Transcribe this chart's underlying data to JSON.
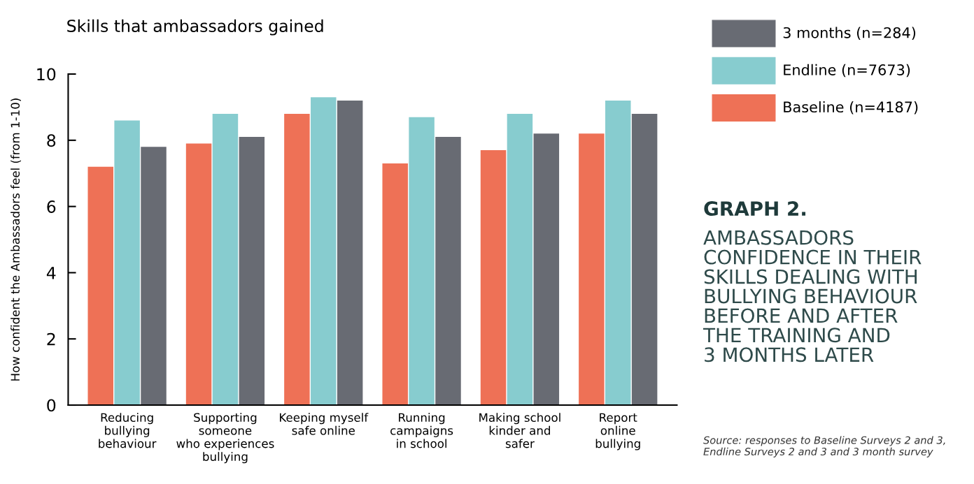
{
  "chart_data": {
    "type": "bar",
    "title": "Skills that ambassadors gained",
    "ylabel": "How confident the Ambassadors feel (from 1-10)",
    "categories": [
      "Reducing\nbullying\nbehaviour",
      "Supporting\nsomeone\nwho experiences\nbullying",
      "Keeping myself\nsafe online",
      "Running\ncampaigns\nin school",
      "Making school\nkinder and\nsafer",
      "Report\nonline\nbullying"
    ],
    "series": [
      {
        "name": "Baseline (n=4187)",
        "color": "#ee7156",
        "values": [
          7.2,
          7.9,
          8.8,
          7.3,
          7.7,
          8.2
        ]
      },
      {
        "name": "Endline (n=7673)",
        "color": "#87cccf",
        "values": [
          8.6,
          8.8,
          9.3,
          8.7,
          8.8,
          9.2
        ]
      },
      {
        "name": "3 months (n=284)",
        "color": "#686b73",
        "values": [
          7.8,
          8.1,
          9.2,
          8.1,
          8.2,
          8.8
        ]
      }
    ],
    "ylim": [
      0,
      10
    ],
    "yticks": [
      0,
      2,
      4,
      6,
      8,
      10
    ],
    "grid": false,
    "legend": "top right",
    "annotations": [
      "GRAPH 2.",
      "AMBASSADORS\nCONFIDENCE IN THEIR\nSKILLS DEALING WITH\nBULLYING BEHAVIOUR\nBEFORE AND AFTER\nTHE TRAINING AND\n3 MONTHS LATER",
      "Source: responses to Baseline Surveys 2 and 3,\nEndline Surveys 2 and 3 and 3 month survey"
    ]
  }
}
